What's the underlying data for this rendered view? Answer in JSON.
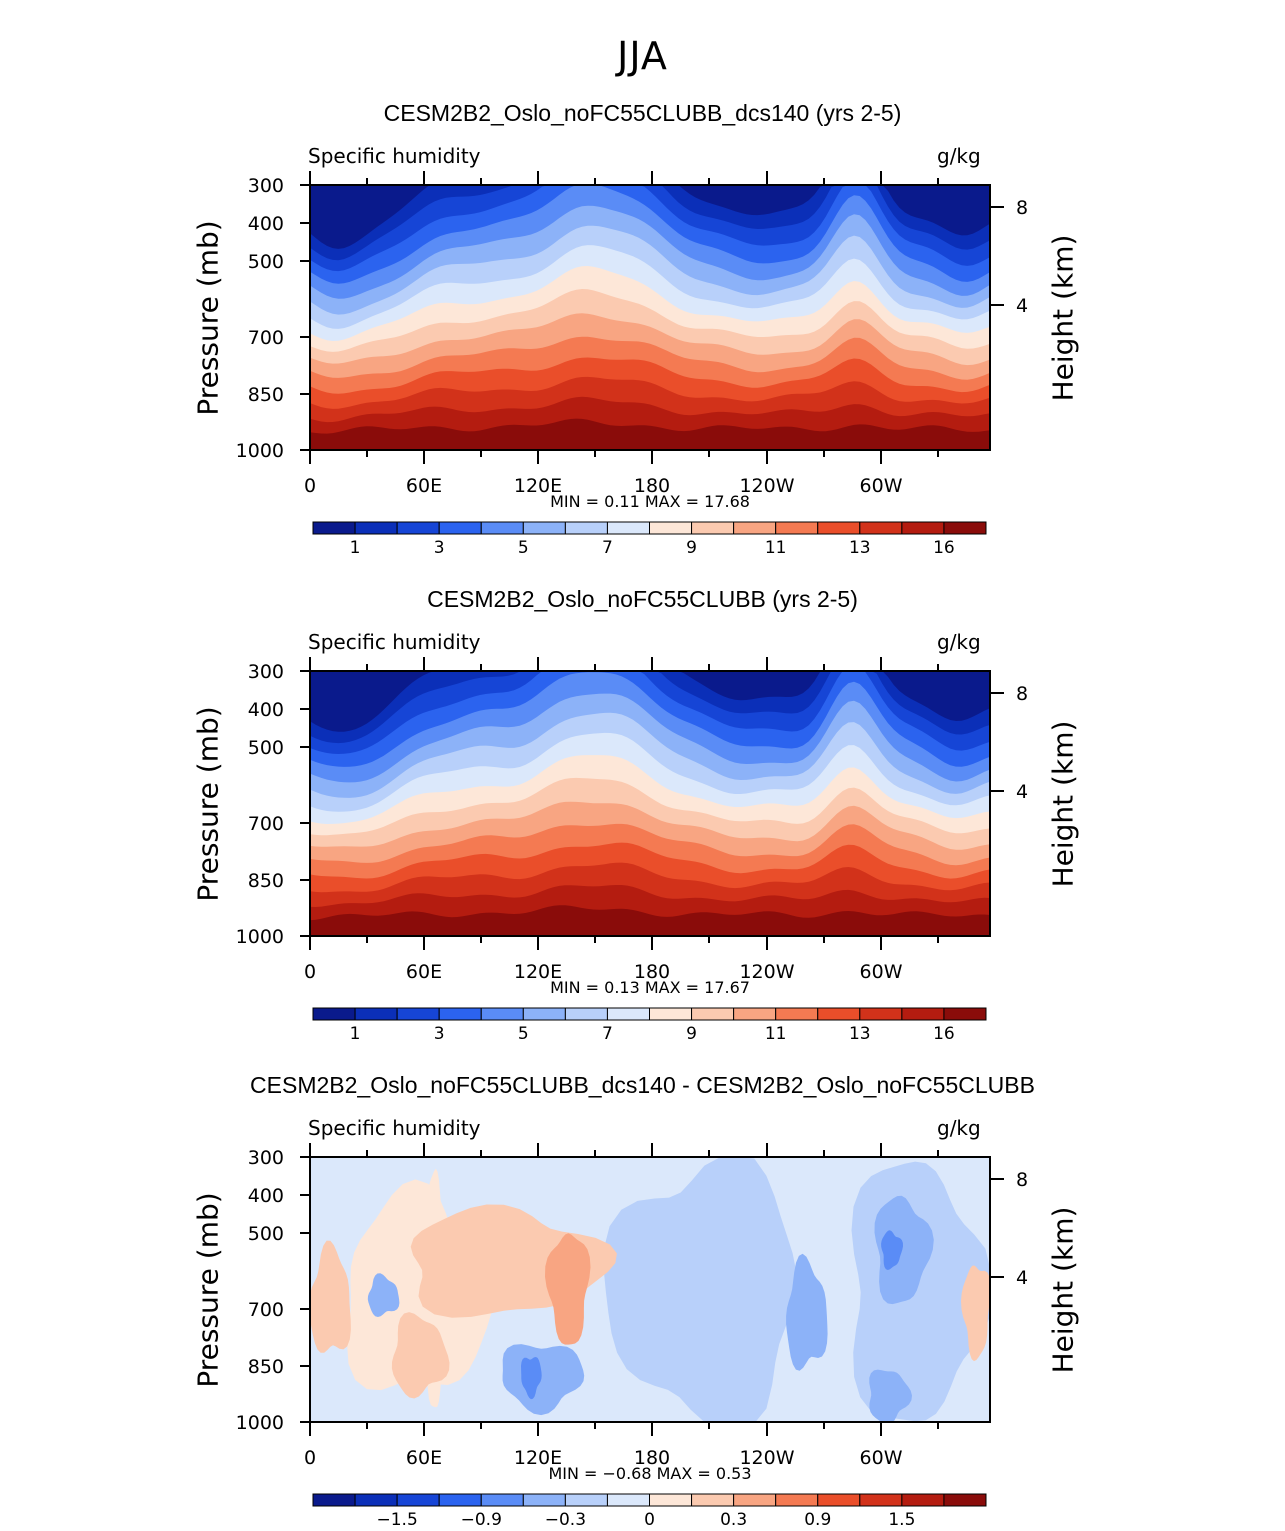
{
  "figure_title": "JJA",
  "chart_data": [
    {
      "type": "heatmap",
      "title": "CESM2B2_Oslo_noFC55CLUBB_dcs140 (yrs 2-5)",
      "left_label": "Specific humidity",
      "right_label": "g/kg",
      "ylabel": "Pressure (mb)",
      "ylabel_right": "Height (km)",
      "x_ticks": [
        "0",
        "60E",
        "120E",
        "180",
        "120W",
        "60W"
      ],
      "y_ticks": [
        "300",
        "400",
        "500",
        "700",
        "850",
        "1000"
      ],
      "y_ticks_right": [
        "8",
        "4"
      ],
      "min_max": "MIN =    0.11   MAX =   17.68",
      "min": 0.11,
      "max": 17.68,
      "colorbar_labels": [
        "1",
        "3",
        "5",
        "7",
        "9",
        "11",
        "13",
        "16"
      ],
      "colorbar_colors": [
        "#0a1a8c",
        "#0b2fb8",
        "#1645d6",
        "#2b63ef",
        "#5a8cf6",
        "#8cb2f8",
        "#b8d0fa",
        "#dbe8fb",
        "#fde7d8",
        "#fbcab0",
        "#f8a582",
        "#f47a52",
        "#ea4e2a",
        "#d2321a",
        "#b41c10",
        "#8a0c0a"
      ]
    },
    {
      "type": "heatmap",
      "title": "CESM2B2_Oslo_noFC55CLUBB (yrs 2-5)",
      "left_label": "Specific humidity",
      "right_label": "g/kg",
      "ylabel": "Pressure (mb)",
      "ylabel_right": "Height (km)",
      "x_ticks": [
        "0",
        "60E",
        "120E",
        "180",
        "120W",
        "60W"
      ],
      "y_ticks": [
        "300",
        "400",
        "500",
        "700",
        "850",
        "1000"
      ],
      "y_ticks_right": [
        "8",
        "4"
      ],
      "min_max": "MIN =    0.13   MAX =   17.67",
      "min": 0.13,
      "max": 17.67,
      "colorbar_labels": [
        "1",
        "3",
        "5",
        "7",
        "9",
        "11",
        "13",
        "16"
      ],
      "colorbar_colors": [
        "#0a1a8c",
        "#0b2fb8",
        "#1645d6",
        "#2b63ef",
        "#5a8cf6",
        "#8cb2f8",
        "#b8d0fa",
        "#dbe8fb",
        "#fde7d8",
        "#fbcab0",
        "#f8a582",
        "#f47a52",
        "#ea4e2a",
        "#d2321a",
        "#b41c10",
        "#8a0c0a"
      ]
    },
    {
      "type": "heatmap",
      "title": "CESM2B2_Oslo_noFC55CLUBB_dcs140 - CESM2B2_Oslo_noFC55CLUBB",
      "left_label": "Specific humidity",
      "right_label": "g/kg",
      "ylabel": "Pressure (mb)",
      "ylabel_right": "Height (km)",
      "x_ticks": [
        "0",
        "60E",
        "120E",
        "180",
        "120W",
        "60W"
      ],
      "y_ticks": [
        "300",
        "400",
        "500",
        "700",
        "850",
        "1000"
      ],
      "y_ticks_right": [
        "8",
        "4"
      ],
      "min_max": "MIN =  −0.68   MAX =    0.53",
      "min": -0.68,
      "max": 0.53,
      "colorbar_labels": [
        "−1.5",
        "−0.9",
        "−0.3",
        "0",
        "0.3",
        "0.9",
        "1.5"
      ],
      "colorbar_colors": [
        "#0a1a8c",
        "#0b2fb8",
        "#1645d6",
        "#2b63ef",
        "#5a8cf6",
        "#8cb2f8",
        "#b8d0fa",
        "#dbe8fb",
        "#fde7d8",
        "#fbcab0",
        "#f8a582",
        "#f47a52",
        "#ea4e2a",
        "#d2321a",
        "#b41c10",
        "#8a0c0a"
      ]
    }
  ]
}
